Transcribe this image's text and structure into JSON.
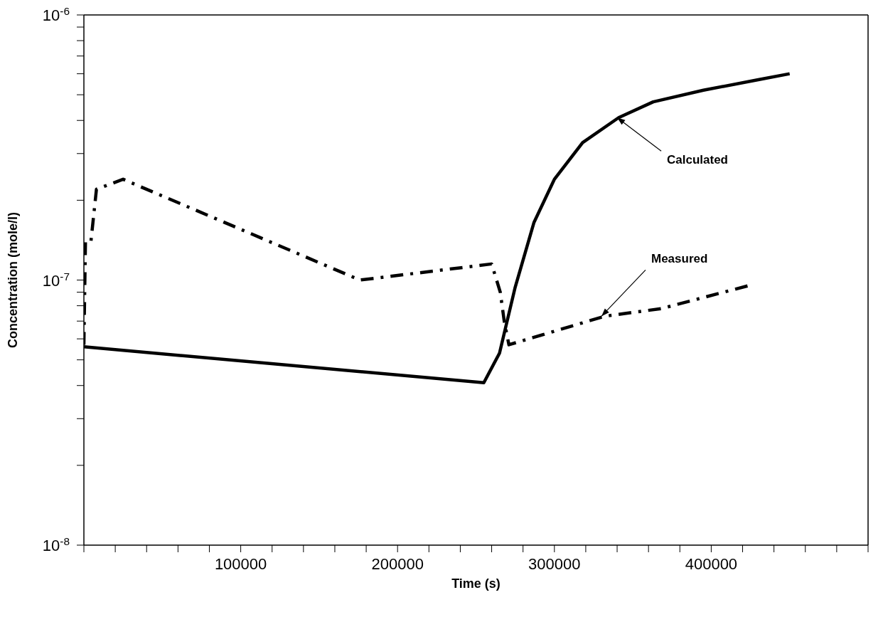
{
  "chart_data": {
    "type": "line",
    "xlabel": "Time (s)",
    "ylabel": "Concentration (mole/l)",
    "log": "y",
    "marker": "none",
    "xlim": [
      0,
      500000
    ],
    "xticks": [
      {
        "value": 0,
        "label": null
      },
      {
        "value": 20000,
        "label": null
      },
      {
        "value": 40000,
        "label": null
      },
      {
        "value": 60000,
        "label": null
      },
      {
        "value": 80000,
        "label": null
      },
      100000,
      {
        "value": 120000,
        "label": null
      },
      {
        "value": 140000,
        "label": null
      },
      {
        "value": 160000,
        "label": null
      },
      {
        "value": 180000,
        "label": null
      },
      200000,
      {
        "value": 220000,
        "label": null
      },
      {
        "value": 240000,
        "label": null
      },
      {
        "value": 260000,
        "label": null
      },
      {
        "value": 280000,
        "label": null
      },
      300000,
      {
        "value": 320000,
        "label": null
      },
      {
        "value": 340000,
        "label": null
      },
      {
        "value": 360000,
        "label": null
      },
      {
        "value": 380000,
        "label": null
      },
      400000,
      {
        "value": 420000,
        "label": null
      },
      {
        "value": 440000,
        "label": null
      },
      {
        "value": 460000,
        "label": null
      },
      {
        "value": 480000,
        "label": null
      },
      {
        "value": 500000,
        "label": null
      }
    ],
    "ylim": [
      1e-08,
      1e-06
    ],
    "yticks": [
      {
        "value": 1e-08,
        "label": "10$^{-8}$"
      },
      {
        "value": 2e-08,
        "label": null
      },
      {
        "value": 3e-08,
        "label": null
      },
      {
        "value": 4e-08,
        "label": null
      },
      {
        "value": 5e-08,
        "label": null
      },
      {
        "value": 6e-08,
        "label": null
      },
      {
        "value": 7e-08,
        "label": null
      },
      {
        "value": 8e-08,
        "label": null
      },
      {
        "value": 9e-08,
        "label": null
      },
      {
        "value": 1e-07,
        "label": "10$^{-7}$"
      },
      {
        "value": 2e-07,
        "label": null
      },
      {
        "value": 3e-07,
        "label": null
      },
      {
        "value": 4e-07,
        "label": null
      },
      {
        "value": 5e-07,
        "label": null
      },
      {
        "value": 6e-07,
        "label": null
      },
      {
        "value": 7e-07,
        "label": null
      },
      {
        "value": 8e-07,
        "label": null
      },
      {
        "value": 9e-07,
        "label": null
      },
      {
        "value": 1e-06,
        "label": "10$^{-6}$"
      }
    ],
    "series": [
      {
        "color": "#000000",
        "line_style": "solid",
        "x": [
          0,
          255000,
          265000,
          275000,
          287000,
          300000,
          318000,
          341000,
          363000,
          395000,
          430000,
          450000
        ],
        "values": [
          5.6e-08,
          4.1e-08,
          5.3e-08,
          9.4e-08,
          1.65e-07,
          2.4e-07,
          3.3e-07,
          4.1e-07,
          4.7e-07,
          5.2e-07,
          5.7e-07,
          6e-07
        ]
      },
      {
        "color": "#000000",
        "line_style": "dashed",
        "x": [
          0,
          1000,
          4500,
          8000,
          25000,
          176000,
          260000,
          265500,
          268000,
          271000,
          332000,
          368000,
          426000
        ],
        "values": [
          5.7e-08,
          1.4e-07,
          1.4e-07,
          2.2e-07,
          2.4e-07,
          1e-07,
          1.15e-07,
          9e-08,
          7e-08,
          5.7e-08,
          7.3e-08,
          7.8e-08,
          9.6e-08
        ]
      }
    ],
    "annotations": [
      {
        "text": "Calculated",
        "x": 340000,
        "y": 4.1e-07
      },
      {
        "text": "Measured",
        "x": 330000,
        "y": 7.3e-08
      }
    ]
  }
}
